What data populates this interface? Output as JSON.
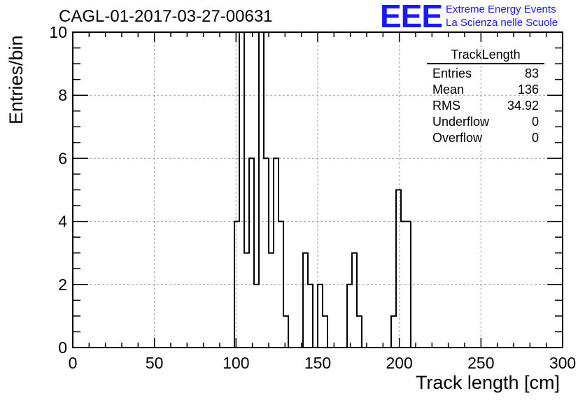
{
  "chart_data": {
    "type": "bar",
    "title": "CAGL-01-2017-03-27-00631",
    "xlabel": "Track length [cm]",
    "ylabel": "Entries/bin",
    "xlim": [
      0,
      300
    ],
    "ylim": [
      0,
      10
    ],
    "grid": true,
    "bin_width": 3,
    "x_ticks": [
      "0",
      "50",
      "100",
      "150",
      "200",
      "250",
      "300"
    ],
    "y_ticks": [
      "0",
      "2",
      "4",
      "6",
      "8",
      "10"
    ],
    "bins": [
      {
        "x": 99,
        "y": 4
      },
      {
        "x": 102,
        "y": 10
      },
      {
        "x": 105,
        "y": 3
      },
      {
        "x": 108,
        "y": 6
      },
      {
        "x": 111,
        "y": 2
      },
      {
        "x": 114,
        "y": 10
      },
      {
        "x": 117,
        "y": 6
      },
      {
        "x": 120,
        "y": 3
      },
      {
        "x": 123,
        "y": 6
      },
      {
        "x": 126,
        "y": 4
      },
      {
        "x": 129,
        "y": 1
      },
      {
        "x": 141,
        "y": 3
      },
      {
        "x": 144,
        "y": 2
      },
      {
        "x": 150,
        "y": 2
      },
      {
        "x": 153,
        "y": 1
      },
      {
        "x": 168,
        "y": 2
      },
      {
        "x": 171,
        "y": 3
      },
      {
        "x": 174,
        "y": 1
      },
      {
        "x": 195,
        "y": 1
      },
      {
        "x": 198,
        "y": 5
      },
      {
        "x": 201,
        "y": 4
      },
      {
        "x": 204,
        "y": 4
      }
    ]
  },
  "stats_box": {
    "name": "TrackLength",
    "entries_label": "Entries",
    "entries": "83",
    "mean_label": "Mean",
    "mean": "136",
    "rms_label": "RMS",
    "rms": "34.92",
    "underflow_label": "Underflow",
    "underflow": "0",
    "overflow_label": "Overflow",
    "overflow": "0"
  },
  "logo": {
    "mark": "EEE",
    "line1": "Extreme Energy Events",
    "line2": "La Scienza nelle Scuole"
  },
  "colors": {
    "logo": "#1a1aff",
    "grid": "#a0a0a0",
    "line": "#000000"
  }
}
